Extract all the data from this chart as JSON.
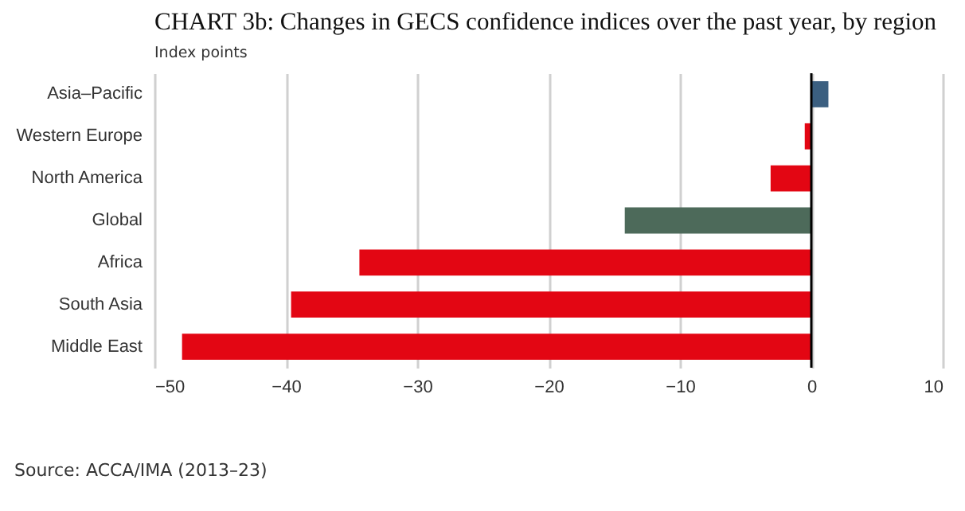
{
  "chart_data": {
    "type": "bar",
    "orientation": "horizontal",
    "title": "CHART 3b: Changes in GECS confidence indices over the past year, by region",
    "subtitle": "Index points",
    "categories": [
      "Asia–Pacific",
      "Western Europe",
      "North America",
      "Global",
      "Africa",
      "South Asia",
      "Middle East"
    ],
    "values": [
      1.3,
      -0.5,
      -3.1,
      -14.2,
      -34.4,
      -39.6,
      -47.9
    ],
    "colors": [
      "#3b5f80",
      "#e30613",
      "#e30613",
      "#4d6a5a",
      "#e30613",
      "#e30613",
      "#e30613"
    ],
    "xlim": [
      -50,
      10
    ],
    "xticks": [
      -50,
      -40,
      -30,
      -20,
      -10,
      0,
      10
    ],
    "grid": "x",
    "ref_lines": [
      {
        "axis": "x",
        "value": 0,
        "color": "#000000"
      }
    ],
    "annotations": [
      "Source: ACCA/IMA (2013–23)"
    ]
  }
}
